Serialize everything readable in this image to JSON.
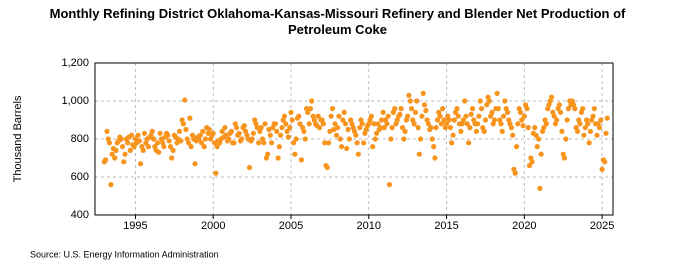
{
  "chart_data": {
    "type": "scatter",
    "title": "Monthly Refining District Oklahoma-Kansas-Missouri Refinery and Blender Net Production of Petroleum Coke",
    "ylabel": "Thousand Barrels",
    "source": "Source: U.S. Energy Information Administration",
    "color": "#f7941d",
    "grid": true,
    "xlim": [
      1992.4,
      2025.7
    ],
    "xticks": [
      1995,
      2000,
      2005,
      2010,
      2015,
      2020,
      2025
    ],
    "ylim": [
      400,
      1200
    ],
    "yticks": [
      400,
      600,
      800,
      {
        "value": 1000,
        "label": "1,000"
      },
      {
        "value": 1200,
        "label": "1,200"
      }
    ],
    "x": [
      1993,
      1993.08,
      1993.17,
      1993.25,
      1993.33,
      1993.42,
      1993.5,
      1993.58,
      1993.67,
      1993.75,
      1993.83,
      1993.92,
      1994,
      1994.08,
      1994.17,
      1994.25,
      1994.33,
      1994.42,
      1994.5,
      1994.58,
      1994.67,
      1994.75,
      1994.83,
      1994.92,
      1995,
      1995.08,
      1995.17,
      1995.25,
      1995.33,
      1995.42,
      1995.5,
      1995.58,
      1995.67,
      1995.75,
      1995.83,
      1995.92,
      1996,
      1996.08,
      1996.17,
      1996.25,
      1996.33,
      1996.42,
      1996.5,
      1996.58,
      1996.67,
      1996.75,
      1996.83,
      1996.92,
      1997,
      1997.08,
      1997.17,
      1997.25,
      1997.33,
      1997.42,
      1997.5,
      1997.58,
      1997.67,
      1997.75,
      1997.83,
      1997.92,
      1998,
      1998.08,
      1998.17,
      1998.25,
      1998.33,
      1998.42,
      1998.5,
      1998.58,
      1998.67,
      1998.75,
      1998.83,
      1998.92,
      1999,
      1999.08,
      1999.17,
      1999.25,
      1999.33,
      1999.42,
      1999.5,
      1999.58,
      1999.67,
      1999.75,
      1999.83,
      1999.92,
      2000,
      2000.08,
      2000.17,
      2000.25,
      2000.33,
      2000.42,
      2000.5,
      2000.58,
      2000.67,
      2000.75,
      2000.83,
      2000.92,
      2001,
      2001.08,
      2001.17,
      2001.25,
      2001.33,
      2001.42,
      2001.5,
      2001.58,
      2001.67,
      2001.75,
      2001.83,
      2001.92,
      2002,
      2002.08,
      2002.17,
      2002.25,
      2002.33,
      2002.42,
      2002.5,
      2002.58,
      2002.67,
      2002.75,
      2002.83,
      2002.92,
      2003,
      2003.08,
      2003.17,
      2003.25,
      2003.33,
      2003.42,
      2003.5,
      2003.58,
      2003.67,
      2003.75,
      2003.83,
      2003.92,
      2004,
      2004.08,
      2004.17,
      2004.25,
      2004.33,
      2004.42,
      2004.5,
      2004.58,
      2004.67,
      2004.75,
      2004.83,
      2004.92,
      2005,
      2005.08,
      2005.17,
      2005.25,
      2005.33,
      2005.42,
      2005.5,
      2005.58,
      2005.67,
      2005.75,
      2005.83,
      2005.92,
      2006,
      2006.08,
      2006.17,
      2006.25,
      2006.33,
      2006.42,
      2006.5,
      2006.58,
      2006.67,
      2006.75,
      2006.83,
      2006.92,
      2007,
      2007.08,
      2007.17,
      2007.25,
      2007.33,
      2007.42,
      2007.5,
      2007.58,
      2007.67,
      2007.75,
      2007.83,
      2007.92,
      2008,
      2008.08,
      2008.17,
      2008.25,
      2008.33,
      2008.42,
      2008.5,
      2008.58,
      2008.67,
      2008.75,
      2008.83,
      2008.92,
      2009,
      2009.08,
      2009.17,
      2009.25,
      2009.33,
      2009.42,
      2009.5,
      2009.58,
      2009.67,
      2009.75,
      2009.83,
      2009.92,
      2010,
      2010.08,
      2010.17,
      2010.25,
      2010.33,
      2010.42,
      2010.5,
      2010.58,
      2010.67,
      2010.75,
      2010.83,
      2010.92,
      2011,
      2011.08,
      2011.17,
      2011.25,
      2011.33,
      2011.42,
      2011.5,
      2011.58,
      2011.67,
      2011.75,
      2011.83,
      2011.92,
      2012,
      2012.08,
      2012.17,
      2012.25,
      2012.33,
      2012.42,
      2012.5,
      2012.58,
      2012.67,
      2012.75,
      2012.83,
      2012.92,
      2013,
      2013.08,
      2013.17,
      2013.25,
      2013.33,
      2013.42,
      2013.5,
      2013.58,
      2013.67,
      2013.75,
      2013.83,
      2013.92,
      2014,
      2014.08,
      2014.17,
      2014.25,
      2014.33,
      2014.42,
      2014.5,
      2014.58,
      2014.67,
      2014.75,
      2014.83,
      2014.92,
      2015,
      2015.08,
      2015.17,
      2015.25,
      2015.33,
      2015.42,
      2015.5,
      2015.58,
      2015.67,
      2015.75,
      2015.83,
      2015.92,
      2016,
      2016.08,
      2016.17,
      2016.25,
      2016.33,
      2016.42,
      2016.5,
      2016.58,
      2016.67,
      2016.75,
      2016.83,
      2016.92,
      2017,
      2017.08,
      2017.17,
      2017.25,
      2017.33,
      2017.42,
      2017.5,
      2017.58,
      2017.67,
      2017.75,
      2017.83,
      2017.92,
      2018,
      2018.08,
      2018.17,
      2018.25,
      2018.33,
      2018.42,
      2018.5,
      2018.58,
      2018.67,
      2018.75,
      2018.83,
      2018.92,
      2019,
      2019.08,
      2019.17,
      2019.25,
      2019.33,
      2019.42,
      2019.5,
      2019.58,
      2019.67,
      2019.75,
      2019.83,
      2019.92,
      2020,
      2020.08,
      2020.17,
      2020.25,
      2020.33,
      2020.42,
      2020.5,
      2020.58,
      2020.67,
      2020.75,
      2020.83,
      2020.92,
      2021,
      2021.08,
      2021.17,
      2021.25,
      2021.33,
      2021.42,
      2021.5,
      2021.58,
      2021.67,
      2021.75,
      2021.83,
      2021.92,
      2022,
      2022.08,
      2022.17,
      2022.25,
      2022.33,
      2022.42,
      2022.5,
      2022.58,
      2022.67,
      2022.75,
      2022.83,
      2022.92,
      2023,
      2023.08,
      2023.17,
      2023.25,
      2023.33,
      2023.42,
      2023.5,
      2023.58,
      2023.67,
      2023.75,
      2023.83,
      2023.92,
      2024,
      2024.08,
      2024.17,
      2024.25,
      2024.33,
      2024.42,
      2024.5,
      2024.58,
      2024.67,
      2024.75,
      2024.83,
      2024.92,
      2025,
      2025.08,
      2025.17,
      2025.25,
      2025.33
    ],
    "values": [
      680,
      690,
      840,
      800,
      780,
      560,
      720,
      750,
      700,
      740,
      780,
      790,
      810,
      800,
      760,
      680,
      720,
      800,
      780,
      810,
      740,
      820,
      770,
      760,
      800,
      780,
      820,
      790,
      670,
      760,
      740,
      830,
      780,
      800,
      760,
      810,
      820,
      840,
      800,
      760,
      740,
      780,
      730,
      830,
      800,
      780,
      760,
      810,
      830,
      820,
      790,
      760,
      700,
      740,
      820,
      810,
      780,
      800,
      840,
      790,
      900,
      880,
      1005,
      850,
      800,
      780,
      910,
      760,
      820,
      800,
      670,
      790,
      810,
      800,
      820,
      780,
      840,
      760,
      800,
      860,
      830,
      850,
      800,
      820,
      830,
      780,
      620,
      760,
      790,
      780,
      800,
      840,
      810,
      860,
      820,
      790,
      800,
      830,
      840,
      780,
      780,
      880,
      860,
      820,
      830,
      790,
      800,
      860,
      870,
      840,
      820,
      800,
      650,
      790,
      800,
      830,
      900,
      880,
      860,
      780,
      840,
      860,
      800,
      780,
      880,
      700,
      720,
      850,
      820,
      780,
      860,
      880,
      880,
      840,
      700,
      760,
      820,
      860,
      900,
      920,
      880,
      840,
      810,
      860,
      940,
      900,
      780,
      720,
      800,
      910,
      920,
      880,
      690,
      860,
      840,
      800,
      960,
      940,
      880,
      960,
      1000,
      920,
      900,
      880,
      870,
      920,
      860,
      900,
      900,
      880,
      780,
      660,
      650,
      780,
      840,
      920,
      960,
      850,
      880,
      820,
      860,
      920,
      800,
      760,
      900,
      940,
      880,
      750,
      850,
      800,
      900,
      880,
      860,
      840,
      820,
      780,
      720,
      860,
      900,
      880,
      780,
      830,
      850,
      870,
      880,
      900,
      920,
      760,
      880,
      800,
      830,
      880,
      850,
      860,
      900,
      940,
      860,
      900,
      880,
      920,
      560,
      800,
      860,
      940,
      960,
      880,
      900,
      920,
      930,
      960,
      860,
      800,
      840,
      900,
      920,
      1030,
      1000,
      960,
      900,
      880,
      940,
      1000,
      860,
      720,
      800,
      920,
      1040,
      980,
      950,
      900,
      880,
      850,
      860,
      800,
      760,
      700,
      860,
      900,
      940,
      920,
      880,
      960,
      900,
      860,
      880,
      920,
      900,
      860,
      780,
      820,
      900,
      940,
      960,
      920,
      880,
      840,
      880,
      900,
      1000,
      920,
      880,
      780,
      860,
      930,
      960,
      900,
      880,
      840,
      880,
      920,
      1000,
      960,
      860,
      840,
      900,
      980,
      1020,
      1000,
      920,
      940,
      880,
      900,
      960,
      1040,
      960,
      900,
      880,
      840,
      920,
      1000,
      960,
      940,
      900,
      880,
      860,
      820,
      640,
      620,
      760,
      880,
      960,
      940,
      900,
      870,
      920,
      980,
      960,
      860,
      660,
      700,
      680,
      830,
      860,
      820,
      760,
      800,
      540,
      720,
      840,
      860,
      900,
      880,
      960,
      980,
      1000,
      1020,
      940,
      920,
      880,
      900,
      960,
      980,
      940,
      840,
      720,
      700,
      800,
      900,
      960,
      1000,
      980,
      1000,
      980,
      960,
      860,
      840,
      900,
      880,
      940,
      960,
      820,
      860,
      900,
      880,
      780,
      840,
      900,
      920,
      960,
      880,
      820,
      880,
      860,
      900,
      640,
      690,
      680,
      830,
      910
    ]
  }
}
